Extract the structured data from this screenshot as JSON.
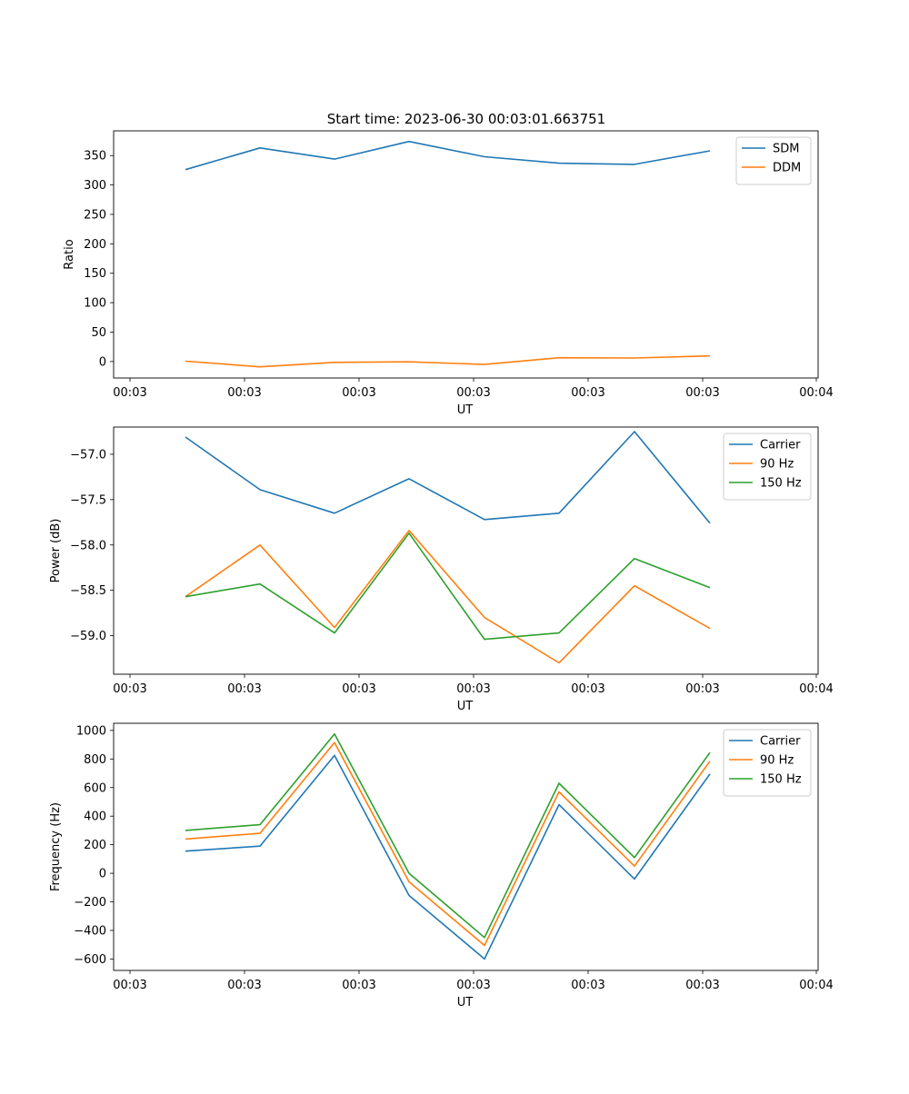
{
  "title": "Start time: 2023-06-30 00:03:01.663751",
  "colors": {
    "blue": "#1f77b4",
    "orange": "#ff7f0e",
    "green": "#2ca02c"
  },
  "chart_data": [
    {
      "type": "line",
      "title": "Start time: 2023-06-30 00:03:01.663751",
      "xlabel": "UT",
      "ylabel": "Ratio",
      "x_tick_labels": [
        "00:03",
        "00:03",
        "00:03",
        "00:03",
        "00:03",
        "00:03",
        "00:03",
        "00:04"
      ],
      "y_ticks": [
        0,
        50,
        100,
        150,
        200,
        250,
        300,
        350
      ],
      "y_tick_labels": [
        "0",
        "50",
        "100",
        "150",
        "200",
        "250",
        "300",
        "350"
      ],
      "ylim": [
        -28,
        392
      ],
      "legend_position": "top-right",
      "grid": false,
      "series": [
        {
          "name": "SDM",
          "color": "#1f77b4",
          "values": [
            326,
            363,
            344,
            374,
            348,
            337,
            335,
            358
          ]
        },
        {
          "name": "DDM",
          "color": "#ff7f0e",
          "values": [
            0.5,
            -9,
            -1.5,
            -0.5,
            -5,
            6.5,
            6,
            9.5
          ]
        }
      ]
    },
    {
      "type": "line",
      "xlabel": "UT",
      "ylabel": "Power (dB)",
      "x_tick_labels": [
        "00:03",
        "00:03",
        "00:03",
        "00:03",
        "00:03",
        "00:03",
        "00:03",
        "00:04"
      ],
      "y_ticks": [
        -59.0,
        -58.5,
        -58.0,
        -57.5,
        -57.0
      ],
      "y_tick_labels": [
        "−59.0",
        "−58.5",
        "−58.0",
        "−57.5",
        "−57.0"
      ],
      "ylim": [
        -59.425,
        -56.7
      ],
      "legend_position": "top-right",
      "grid": false,
      "series": [
        {
          "name": "Carrier",
          "color": "#1f77b4",
          "values": [
            -56.81,
            -57.39,
            -57.65,
            -57.27,
            -57.72,
            -57.65,
            -56.75,
            -57.76
          ]
        },
        {
          "name": "90 Hz",
          "color": "#ff7f0e",
          "values": [
            -58.57,
            -58.0,
            -58.91,
            -57.84,
            -58.8,
            -59.3,
            -58.45,
            -58.92
          ]
        },
        {
          "name": "150 Hz",
          "color": "#2ca02c",
          "values": [
            -58.57,
            -58.43,
            -58.97,
            -57.87,
            -59.04,
            -58.97,
            -58.15,
            -58.47
          ]
        }
      ]
    },
    {
      "type": "line",
      "xlabel": "UT",
      "ylabel": "Frequency (Hz)",
      "x_tick_labels": [
        "00:03",
        "00:03",
        "00:03",
        "00:03",
        "00:03",
        "00:03",
        "00:03",
        "00:04"
      ],
      "y_ticks": [
        -600,
        -400,
        -200,
        0,
        200,
        400,
        600,
        800,
        1000
      ],
      "y_tick_labels": [
        "−600",
        "−400",
        "−200",
        "0",
        "200",
        "400",
        "600",
        "800",
        "1000"
      ],
      "ylim": [
        -680,
        1050
      ],
      "legend_position": "top-right",
      "grid": false,
      "series": [
        {
          "name": "Carrier",
          "color": "#1f77b4",
          "values": [
            155,
            190,
            825,
            -155,
            -600,
            480,
            -40,
            695
          ]
        },
        {
          "name": "90 Hz",
          "color": "#ff7f0e",
          "values": [
            240,
            280,
            915,
            -60,
            -505,
            570,
            50,
            785
          ]
        },
        {
          "name": "150 Hz",
          "color": "#2ca02c",
          "values": [
            300,
            340,
            975,
            0,
            -450,
            630,
            110,
            845
          ]
        }
      ]
    }
  ]
}
